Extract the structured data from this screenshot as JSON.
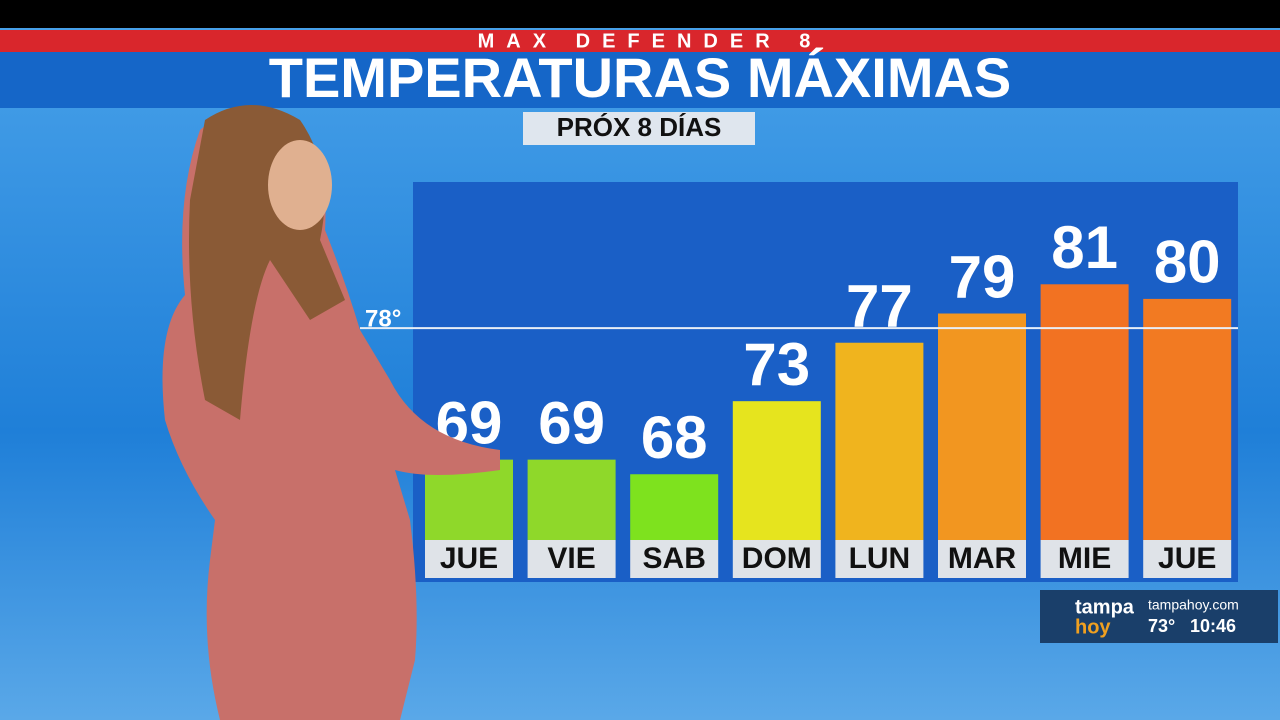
{
  "chart_data": {
    "type": "bar",
    "kicker": "MAX DEFENDER 8",
    "title": "TEMPERATURAS MÁXIMAS",
    "subtitle": "PRÓX 8 DÍAS",
    "categories": [
      "JUE",
      "VIE",
      "SAB",
      "DOM",
      "LUN",
      "MAR",
      "MIE",
      "JUE"
    ],
    "values": [
      69,
      69,
      68,
      73,
      77,
      79,
      81,
      80
    ],
    "colors": [
      "#8fd82a",
      "#8fd82a",
      "#7ee21e",
      "#e6e41e",
      "#f0b41e",
      "#f29620",
      "#f27222",
      "#f27a22"
    ],
    "ylim": [
      63.5,
      88
    ],
    "reference_line": {
      "value": 78,
      "label": "78°"
    }
  },
  "overlay": {
    "brand_top": "tampa",
    "brand_bottom": "hoy",
    "website": "tampahoy.com",
    "temperature": "73°",
    "time": "10:46"
  }
}
